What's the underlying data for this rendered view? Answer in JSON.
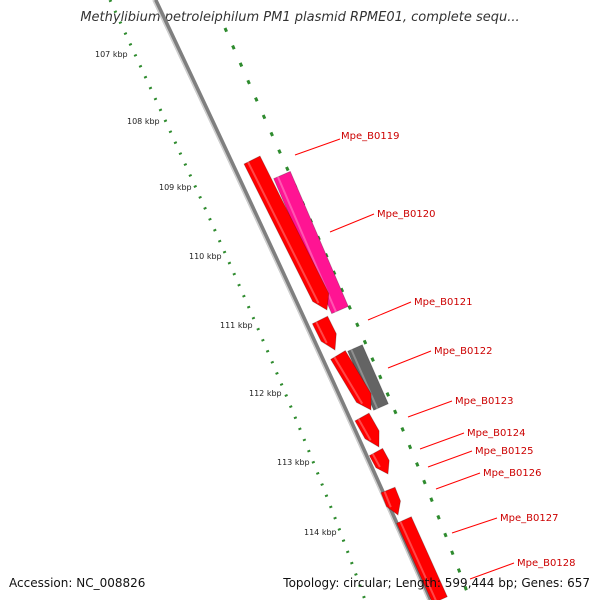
{
  "title": "Methylibium petroleiphilum PM1 plasmid RPME01, complete sequ...",
  "footer": {
    "accession": "Accession: NC_008826",
    "summary": "Topology: circular; Length: 599,444 bp; Genes: 657"
  },
  "colors": {
    "backbone": "#8c8c8c",
    "tick_dots": "#2e8b2e",
    "gene_red": "#ff0000",
    "gene_pink": "#ff1493",
    "gene_gray": "#646464",
    "label_red": "#cc0000"
  },
  "ruler": {
    "unit": "kbp",
    "ticks": [
      {
        "label": "107 kbp"
      },
      {
        "label": "108 kbp"
      },
      {
        "label": "109 kbp"
      },
      {
        "label": "110 kbp"
      },
      {
        "label": "111 kbp"
      },
      {
        "label": "112 kbp"
      },
      {
        "label": "113 kbp"
      },
      {
        "label": "114 kbp"
      }
    ]
  },
  "genes": [
    {
      "name": "Mpe_B0119",
      "color": "pink"
    },
    {
      "name": "Mpe_B0120",
      "color": "red"
    },
    {
      "name": "Mpe_B0121",
      "color": "red"
    },
    {
      "name": "Mpe_B0122",
      "color": "gray"
    },
    {
      "name": "Mpe_B0123",
      "color": "red"
    },
    {
      "name": "Mpe_B0124",
      "color": "red"
    },
    {
      "name": "Mpe_B0125",
      "color": "red"
    },
    {
      "name": "Mpe_B0126",
      "color": "red"
    },
    {
      "name": "Mpe_B0127",
      "color": "red"
    },
    {
      "name": "Mpe_B0128",
      "color": "red"
    }
  ]
}
